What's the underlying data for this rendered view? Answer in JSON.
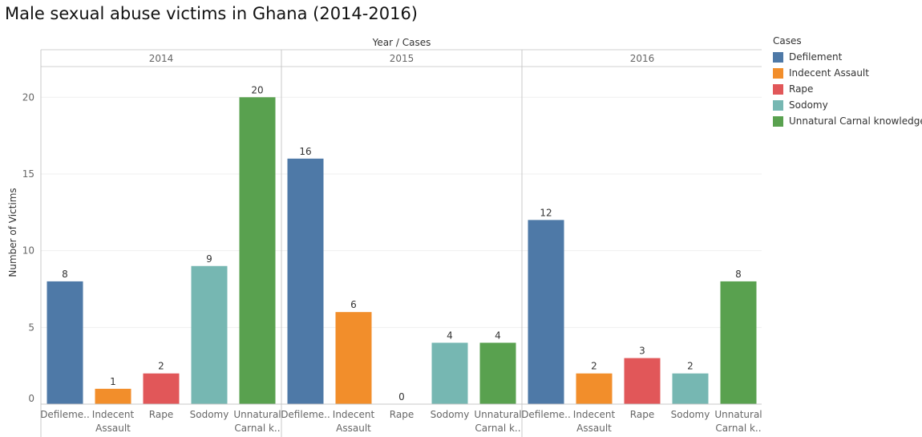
{
  "chart_data": {
    "type": "bar",
    "title": "Male sexual abuse victims in Ghana (2014-2016)",
    "header": "Year / Cases",
    "xlabel": "",
    "ylabel": "Number of Victims",
    "ylim": [
      0,
      22
    ],
    "yticks": [
      0,
      5,
      10,
      15,
      20
    ],
    "grid": true,
    "legend": {
      "title": "Cases",
      "position": "top-right",
      "entries": [
        "Defilement",
        "Indecent Assault",
        "Rape",
        "Sodomy",
        "Unnatural Carnal knowledge"
      ]
    },
    "colors": {
      "Defilement": "#4e79a7",
      "Indecent Assault": "#f28e2b",
      "Rape": "#e15759",
      "Sodomy": "#76b7b2",
      "Unnatural Carnal knowledge": "#59a14f"
    },
    "panels": [
      {
        "year": "2014",
        "bars": [
          {
            "case": "Defilement",
            "tick": [
              "Defileme.."
            ],
            "value": 8
          },
          {
            "case": "Indecent Assault",
            "tick": [
              "Indecent",
              "Assault"
            ],
            "value": 1
          },
          {
            "case": "Rape",
            "tick": [
              "Rape"
            ],
            "value": 2
          },
          {
            "case": "Sodomy",
            "tick": [
              "Sodomy"
            ],
            "value": 9
          },
          {
            "case": "Unnatural Carnal knowledge",
            "tick": [
              "Unnatural",
              "Carnal k.."
            ],
            "value": 20
          }
        ]
      },
      {
        "year": "2015",
        "bars": [
          {
            "case": "Defilement",
            "tick": [
              "Defileme.."
            ],
            "value": 16
          },
          {
            "case": "Indecent Assault",
            "tick": [
              "Indecent",
              "Assault"
            ],
            "value": 6
          },
          {
            "case": "Rape",
            "tick": [
              "Rape"
            ],
            "value": 0
          },
          {
            "case": "Sodomy",
            "tick": [
              "Sodomy"
            ],
            "value": 4
          },
          {
            "case": "Unnatural Carnal knowledge",
            "tick": [
              "Unnatural",
              "Carnal k.."
            ],
            "value": 4
          }
        ]
      },
      {
        "year": "2016",
        "bars": [
          {
            "case": "Defilement",
            "tick": [
              "Defileme.."
            ],
            "value": 12
          },
          {
            "case": "Indecent Assault",
            "tick": [
              "Indecent",
              "Assault"
            ],
            "value": 2
          },
          {
            "case": "Rape",
            "tick": [
              "Rape"
            ],
            "value": 3
          },
          {
            "case": "Sodomy",
            "tick": [
              "Sodomy"
            ],
            "value": 2
          },
          {
            "case": "Unnatural Carnal knowledge",
            "tick": [
              "Unnatural",
              "Carnal k.."
            ],
            "value": 8
          }
        ]
      }
    ]
  }
}
